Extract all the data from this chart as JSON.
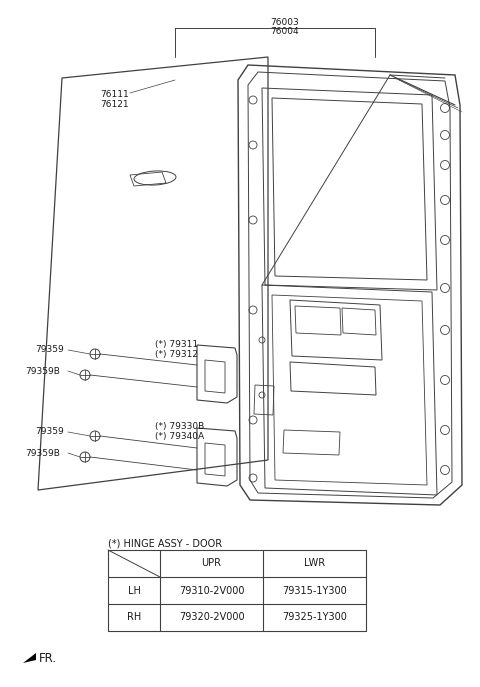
{
  "bg_color": "#ffffff",
  "label_76003": "76003",
  "label_76004": "76004",
  "label_76111": "76111",
  "label_76121": "76121",
  "label_79311": "(*) 79311",
  "label_79312": "(*) 79312",
  "label_79330B": "(*) 79330B",
  "label_79340A": "(*) 79340A",
  "label_79359_1": "79359",
  "label_79359B_1": "79359B",
  "label_79359_2": "79359",
  "label_79359B_2": "79359B",
  "table_title": "(*) HINGE ASSY - DOOR",
  "table_headers": [
    "",
    "UPR",
    "LWR"
  ],
  "table_row1": [
    "LH",
    "79310-2V000",
    "79315-1Y300"
  ],
  "table_row2": [
    "RH",
    "79320-2V000",
    "79325-1Y300"
  ],
  "fr_label": "FR.",
  "line_color": "#404040",
  "text_color": "#1a1a1a",
  "font_size_labels": 6.5,
  "font_size_table": 7.0
}
